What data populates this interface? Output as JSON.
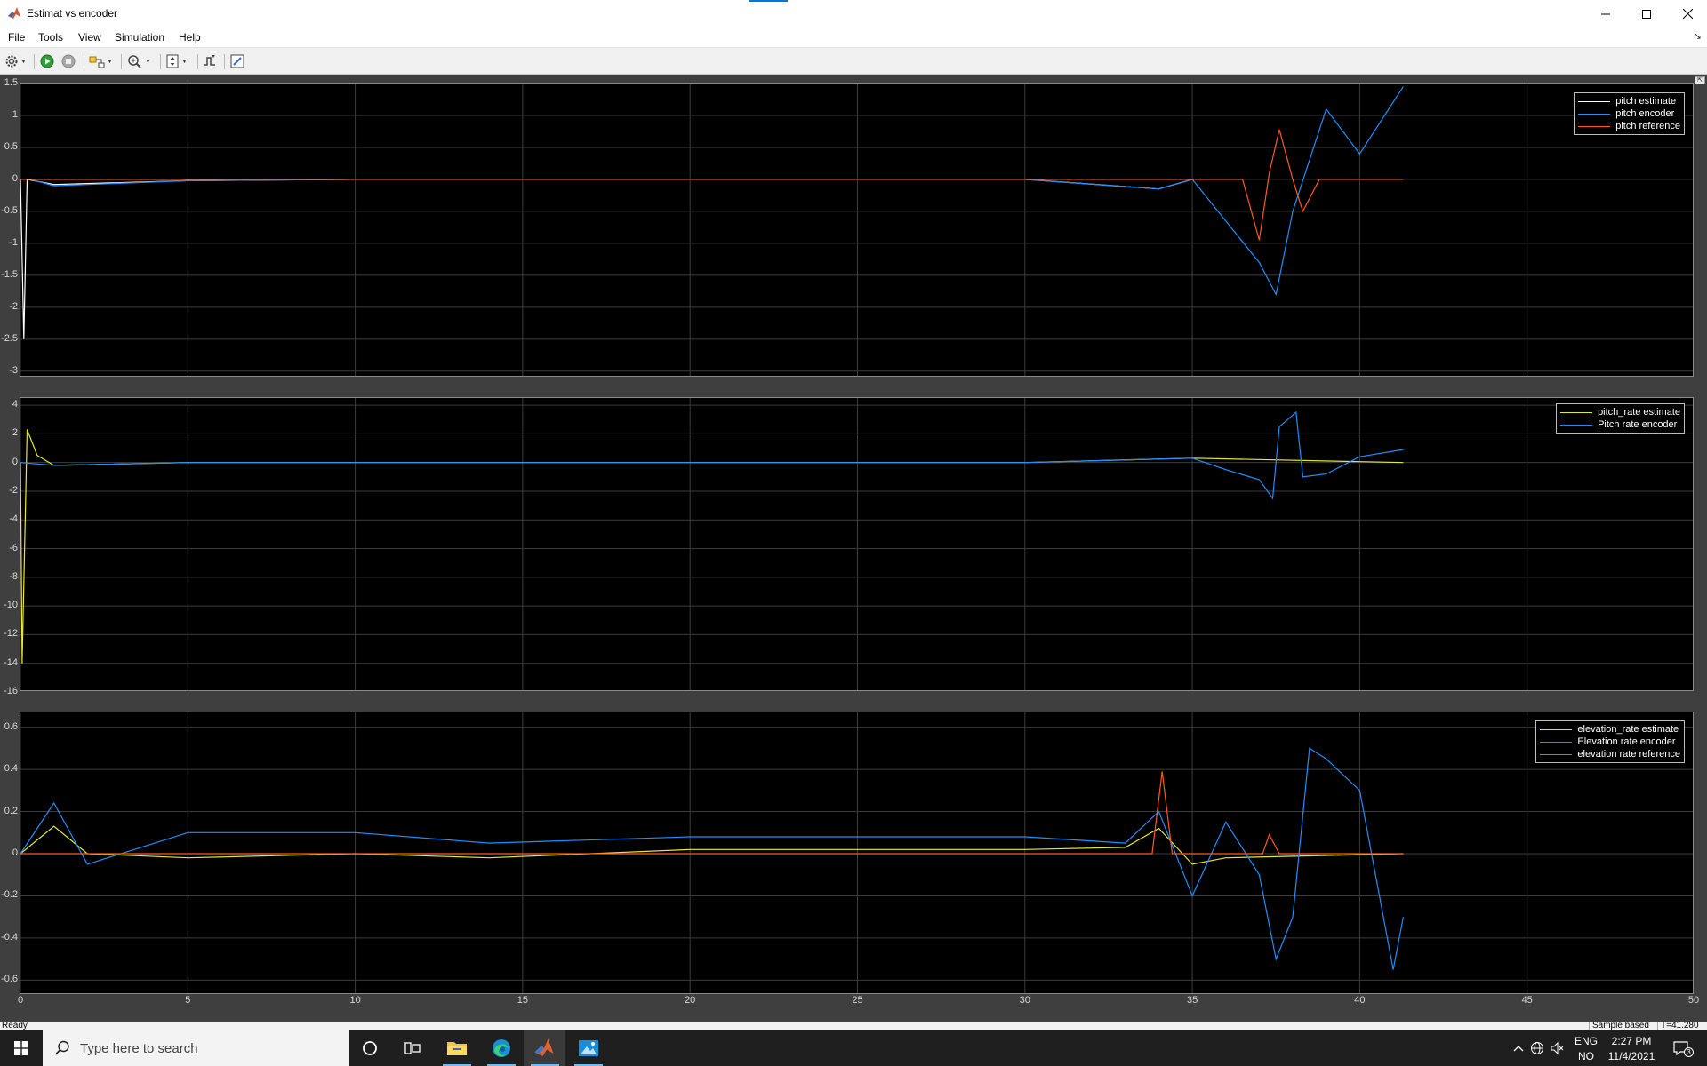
{
  "window": {
    "title": "Estimat vs encoder",
    "app_icon": "matlab-icon",
    "controls": {
      "minimize": "minimize-icon",
      "maximize": "maximize-icon",
      "close": "close-icon"
    }
  },
  "menu": {
    "items": [
      {
        "label": "File"
      },
      {
        "label": "Tools"
      },
      {
        "label": "View"
      },
      {
        "label": "Simulation"
      },
      {
        "label": "Help"
      }
    ],
    "pin_glyph": "↘"
  },
  "toolbar": {
    "buttons": [
      {
        "icon": "settings-gear-icon",
        "has_dropdown": true
      },
      {
        "icon": "run-icon"
      },
      {
        "icon": "stop-icon"
      },
      {
        "icon": "highlight-block-icon",
        "has_dropdown": true
      },
      {
        "icon": "zoom-icon",
        "has_dropdown": true
      },
      {
        "icon": "autoscale-icon",
        "has_dropdown": true
      },
      {
        "icon": "triggers-icon"
      },
      {
        "icon": "style-icon"
      }
    ]
  },
  "colors": {
    "background": "#000000",
    "grid": "#3c3c3c",
    "tick_text": "#d8d8d8",
    "yellow": "#e8e830",
    "blue": "#1e90ff",
    "orange": "#ff5a1e",
    "white_series": "#ffffff"
  },
  "plots": [
    {
      "y_ticks": [
        "1.5",
        "1",
        "0.5",
        "0",
        "-0.5",
        "-1",
        "-1.5",
        "-2",
        "-2.5",
        "-3"
      ],
      "legend": [
        {
          "label": "pitch estimate",
          "color": "#ffffff"
        },
        {
          "label": "pitch encoder",
          "color": "#1e90ff"
        },
        {
          "label": "pitch reference",
          "color": "#ff5a1e"
        }
      ]
    },
    {
      "y_ticks": [
        "4",
        "2",
        "0",
        "-2",
        "-4",
        "-6",
        "-8",
        "-10",
        "-12",
        "-14",
        "-16"
      ],
      "legend": [
        {
          "label": "pitch_rate estimate",
          "color": "#e8e830"
        },
        {
          "label": "Pitch rate encoder",
          "color": "#1e90ff"
        }
      ]
    },
    {
      "y_ticks": [
        "0.6",
        "0.4",
        "0.2",
        "0",
        "-0.2",
        "-0.4",
        "-0.6"
      ],
      "x_ticks": [
        "0",
        "5",
        "10",
        "15",
        "20",
        "25",
        "30",
        "35",
        "40",
        "45",
        "50"
      ],
      "legend": [
        {
          "label": "elevation_rate estimate",
          "color": "#e8e830"
        },
        {
          "label": "Elevation rate encoder",
          "color": "#1e90ff"
        },
        {
          "label": "elevation rate reference",
          "color": "#ff5a1e"
        }
      ]
    }
  ],
  "chart_data": [
    {
      "type": "line",
      "title": "",
      "xlim": [
        0,
        50
      ],
      "ylim": [
        -3.1,
        1.5
      ],
      "grid": true,
      "legend_position": "top-right",
      "series": [
        {
          "name": "pitch estimate",
          "x": [
            0,
            0.1,
            0.2,
            1,
            5,
            10,
            15,
            20,
            25,
            30,
            34,
            35
          ],
          "y": [
            0,
            -2.5,
            0,
            -0.08,
            -0.02,
            0,
            0,
            0,
            0,
            0,
            -0.15,
            0
          ]
        },
        {
          "name": "pitch encoder",
          "x": [
            0,
            0.3,
            1,
            5,
            10,
            15,
            20,
            25,
            30,
            34,
            35,
            37,
            37.5,
            38,
            39,
            40,
            41.3
          ],
          "y": [
            0,
            0,
            -0.1,
            -0.02,
            0,
            0,
            0,
            0,
            0,
            -0.15,
            0,
            -1.3,
            -1.8,
            -0.5,
            1.1,
            0.4,
            1.45
          ]
        },
        {
          "name": "pitch reference",
          "x": [
            0,
            35,
            36.5,
            37,
            37.3,
            37.6,
            38,
            38.3,
            38.8,
            41.3
          ],
          "y": [
            0,
            0,
            0,
            -0.95,
            0.1,
            0.78,
            0,
            -0.5,
            0,
            0
          ]
        }
      ]
    },
    {
      "type": "line",
      "title": "",
      "xlim": [
        0,
        50
      ],
      "ylim": [
        -16,
        4.5
      ],
      "grid": true,
      "legend_position": "top-right",
      "series": [
        {
          "name": "pitch_rate estimate",
          "x": [
            0,
            0.05,
            0.2,
            0.5,
            1,
            5,
            10,
            15,
            20,
            25,
            30,
            35,
            41.3
          ],
          "y": [
            0,
            -14,
            2.3,
            0.5,
            -0.2,
            0,
            0,
            0,
            0,
            0,
            0,
            0.3,
            0
          ]
        },
        {
          "name": "Pitch rate encoder",
          "x": [
            0,
            1,
            5,
            10,
            15,
            20,
            25,
            30,
            35,
            36,
            37,
            37.4,
            37.6,
            38.1,
            38.3,
            39,
            40,
            41.3
          ],
          "y": [
            0,
            -0.2,
            0,
            0,
            0,
            0,
            0,
            0,
            0.3,
            -0.5,
            -1.2,
            -2.5,
            2.5,
            3.5,
            -1,
            -0.8,
            0.4,
            0.9
          ]
        }
      ]
    },
    {
      "type": "line",
      "title": "",
      "xlim": [
        0,
        50
      ],
      "ylim": [
        -0.67,
        0.67
      ],
      "grid": true,
      "legend_position": "top-right",
      "series": [
        {
          "name": "elevation_rate estimate",
          "x": [
            0,
            1,
            2,
            5,
            10,
            14,
            20,
            25,
            30,
            33,
            34,
            35,
            36,
            41.3
          ],
          "y": [
            0,
            0.13,
            0,
            -0.02,
            0,
            -0.02,
            0.02,
            0.02,
            0.02,
            0.03,
            0.12,
            -0.05,
            -0.02,
            0
          ]
        },
        {
          "name": "Elevation rate encoder",
          "x": [
            0,
            1,
            2,
            5,
            10,
            14,
            20,
            25,
            30,
            33,
            34,
            35,
            36,
            37,
            37.5,
            38,
            38.5,
            39,
            40,
            41,
            41.3
          ],
          "y": [
            0,
            0.24,
            -0.05,
            0.1,
            0.1,
            0.05,
            0.08,
            0.08,
            0.08,
            0.05,
            0.2,
            -0.2,
            0.15,
            -0.1,
            -0.5,
            -0.3,
            0.5,
            0.45,
            0.3,
            -0.55,
            -0.3
          ]
        },
        {
          "name": "elevation rate reference",
          "x": [
            0,
            33.8,
            34.1,
            34.4,
            37.1,
            37.3,
            37.6,
            41.3
          ],
          "y": [
            0,
            0,
            0.39,
            0,
            0,
            0.09,
            0,
            0
          ]
        }
      ]
    }
  ],
  "status": {
    "left": "Ready",
    "mode": "Sample based",
    "time": "T=41.280"
  },
  "taskbar": {
    "start_icon": "windows-start-icon",
    "search_placeholder": "Type here to search",
    "search_icon": "search-icon",
    "apps": [
      {
        "name": "cortana-icon"
      },
      {
        "name": "task-view-icon"
      },
      {
        "name": "file-explorer-icon"
      },
      {
        "name": "edge-icon"
      },
      {
        "name": "matlab-icon"
      },
      {
        "name": "photos-icon"
      }
    ],
    "tray": {
      "language_top": "ENG",
      "language_bottom": "NO",
      "time": "2:27 PM",
      "date": "11/4/2021",
      "notification_count": "3"
    }
  }
}
